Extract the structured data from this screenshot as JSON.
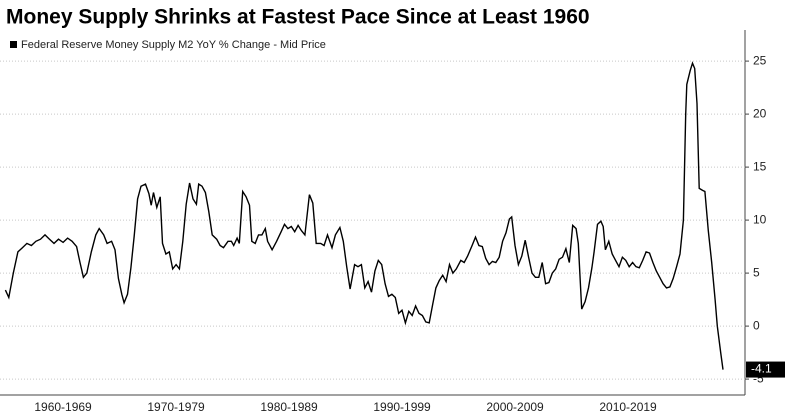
{
  "chart_data": {
    "type": "line",
    "title": "Money Supply Shrinks at Fastest Pace Since at Least 1960",
    "x": [
      1959.9,
      1960.2,
      1960.6,
      1961.0,
      1961.4,
      1961.8,
      1962.2,
      1962.6,
      1963.0,
      1963.4,
      1963.8,
      1964.2,
      1964.6,
      1965.0,
      1965.4,
      1965.8,
      1966.2,
      1966.5,
      1966.8,
      1967.1,
      1967.5,
      1967.9,
      1968.2,
      1968.6,
      1968.9,
      1969.3,
      1969.6,
      1969.9,
      1970.2,
      1970.4,
      1970.7,
      1971.0,
      1971.3,
      1971.6,
      1971.9,
      1972.3,
      1972.6,
      1972.8,
      1973.0,
      1973.3,
      1973.6,
      1973.8,
      1974.1,
      1974.4,
      1974.7,
      1975.0,
      1975.3,
      1975.6,
      1975.9,
      1976.2,
      1976.5,
      1976.8,
      1977.0,
      1977.3,
      1977.6,
      1977.9,
      1978.2,
      1978.6,
      1978.9,
      1979.2,
      1979.6,
      1979.9,
      1980.1,
      1980.4,
      1980.6,
      1980.9,
      1981.2,
      1981.5,
      1981.7,
      1982.0,
      1982.3,
      1982.6,
      1982.9,
      1983.1,
      1983.5,
      1983.9,
      1984.3,
      1984.6,
      1984.9,
      1985.2,
      1985.5,
      1985.8,
      1986.1,
      1986.4,
      1986.8,
      1987.1,
      1987.4,
      1987.8,
      1988.1,
      1988.4,
      1988.8,
      1989.1,
      1989.5,
      1989.8,
      1990.1,
      1990.4,
      1990.8,
      1991.1,
      1991.4,
      1991.7,
      1992.0,
      1992.3,
      1992.6,
      1992.9,
      1993.2,
      1993.5,
      1993.8,
      1994.1,
      1994.4,
      1994.7,
      1995.0,
      1995.3,
      1995.6,
      1995.9,
      1996.2,
      1996.5,
      1996.8,
      1997.1,
      1997.4,
      1997.7,
      1998.0,
      1998.3,
      1998.6,
      1998.9,
      1999.2,
      1999.5,
      1999.8,
      2000.2,
      2000.5,
      2000.8,
      2001.2,
      2001.5,
      2001.8,
      2002.1,
      2002.4,
      2002.7,
      2003.0,
      2003.3,
      2003.6,
      2003.9,
      2004.2,
      2004.5,
      2004.7,
      2005.0,
      2005.3,
      2005.6,
      2005.9,
      2006.2,
      2006.5,
      2006.8,
      2007.1,
      2007.4,
      2007.7,
      2008.0,
      2008.3,
      2008.6,
      2008.9,
      2009.2,
      2009.5,
      2009.8,
      2010.1,
      2010.4,
      2010.6,
      2010.9,
      2011.2,
      2011.5,
      2011.8,
      2012.0,
      2012.3,
      2012.6,
      2012.8,
      2013.0,
      2013.3,
      2013.6,
      2013.9,
      2014.2,
      2014.5,
      2014.8,
      2015.1,
      2015.4,
      2015.7,
      2016.0,
      2016.3,
      2016.6,
      2016.9,
      2017.2,
      2017.5,
      2017.8,
      2018.1,
      2018.4,
      2018.7,
      2019.0,
      2019.3,
      2019.6,
      2019.9,
      2020.1,
      2020.2,
      2020.5,
      2020.7,
      2020.9,
      2021.1,
      2021.3,
      2021.6,
      2021.8,
      2022.1,
      2022.4,
      2022.7,
      2022.9,
      2023.2,
      2023.4
    ],
    "series": [
      {
        "name": "Federal Reserve Money Supply M2 YoY % Change - Mid Price",
        "color": "#000000",
        "values": [
          3.4,
          2.7,
          5.0,
          7.0,
          7.4,
          7.8,
          7.6,
          8.0,
          8.2,
          8.6,
          8.2,
          7.8,
          8.2,
          7.9,
          8.3,
          8.0,
          7.5,
          6.0,
          4.6,
          5.0,
          7.0,
          8.6,
          9.2,
          8.6,
          7.8,
          8.0,
          7.2,
          4.5,
          3.0,
          2.2,
          3.0,
          5.5,
          8.5,
          12.0,
          13.2,
          13.4,
          12.5,
          11.4,
          12.6,
          11.2,
          12.2,
          7.8,
          6.8,
          7.0,
          5.4,
          5.8,
          5.4,
          8.0,
          11.5,
          13.5,
          12.0,
          11.5,
          13.4,
          13.2,
          12.6,
          10.8,
          8.6,
          8.2,
          7.6,
          7.4,
          8.0,
          8.0,
          7.6,
          8.3,
          7.8,
          12.7,
          12.2,
          11.4,
          8.0,
          7.8,
          8.6,
          8.6,
          9.2,
          8.0,
          7.2,
          8.0,
          8.9,
          9.6,
          9.2,
          9.4,
          8.9,
          9.5,
          9.0,
          8.6,
          12.4,
          11.6,
          7.8,
          7.8,
          7.6,
          8.6,
          7.4,
          8.6,
          9.3,
          8.0,
          5.6,
          3.5,
          5.8,
          5.6,
          5.8,
          3.6,
          4.2,
          3.2,
          5.2,
          6.2,
          5.8,
          4.0,
          2.8,
          3.0,
          2.7,
          1.2,
          1.5,
          0.3,
          1.4,
          1.0,
          1.9,
          1.2,
          1.0,
          0.4,
          0.3,
          2.0,
          3.6,
          4.3,
          4.8,
          4.2,
          5.8,
          5.0,
          5.4,
          6.2,
          6.0,
          6.6,
          7.6,
          8.4,
          7.6,
          7.5,
          6.4,
          5.8,
          6.1,
          6.0,
          6.5,
          8.0,
          8.8,
          10.1,
          10.3,
          7.6,
          5.8,
          6.6,
          8.1,
          6.5,
          5.0,
          4.6,
          4.6,
          6.0,
          4.0,
          4.1,
          5.0,
          5.4,
          6.3,
          6.5,
          7.3,
          6.0,
          9.5,
          9.2,
          7.8,
          1.6,
          2.3,
          3.6,
          5.5,
          7.0,
          9.6,
          9.9,
          9.4,
          7.2,
          8.0,
          6.8,
          6.2,
          5.6,
          6.5,
          6.2,
          5.6,
          6.0,
          5.6,
          5.5,
          6.2,
          7.0,
          6.9,
          6.0,
          5.2,
          4.6,
          4.0,
          3.6,
          3.7,
          4.5,
          5.6,
          6.8,
          10.0,
          20.0,
          22.8,
          24.1,
          24.8,
          24.3,
          21.0,
          13.0,
          12.8,
          12.7,
          9.0,
          6.0,
          2.5,
          0.0,
          -2.5,
          -4.1
        ]
      }
    ],
    "last_value_label": "-4.1",
    "xlim": [
      1959.42,
      2025.35
    ],
    "xticks": [
      {
        "value": 1965,
        "label": "1960-1969"
      },
      {
        "value": 1975,
        "label": "1970-1979"
      },
      {
        "value": 1985,
        "label": "1980-1989"
      },
      {
        "value": 1995,
        "label": "1990-1999"
      },
      {
        "value": 2005,
        "label": "2000-2009"
      },
      {
        "value": 2015,
        "label": "2010-2019"
      }
    ],
    "ylim": [
      -6.5,
      28
    ],
    "yticks": [
      -5,
      0,
      5,
      10,
      15,
      20,
      25
    ],
    "grid": true
  }
}
